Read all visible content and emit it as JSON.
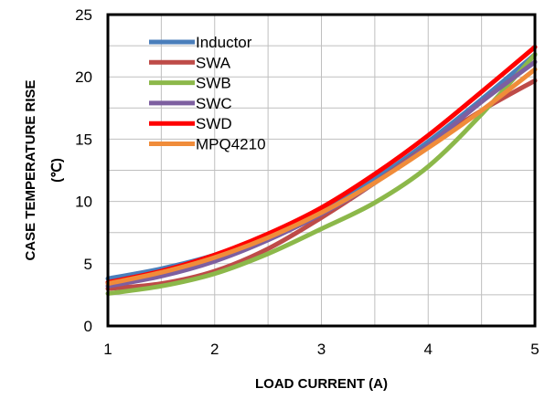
{
  "chart_data": {
    "type": "line",
    "xlabel": "LOAD CURRENT  (A)",
    "ylabel_line1": "CASE  TEMPERATURE  RISE",
    "ylabel_line2": "(℃)",
    "xlim": [
      1,
      5
    ],
    "ylim": [
      0,
      25
    ],
    "xticks": [
      1,
      2,
      3,
      4,
      5
    ],
    "yticks": [
      0,
      5,
      10,
      15,
      20,
      25
    ],
    "grid": true,
    "legend_position": "top-left",
    "series": [
      {
        "name": "Inductor",
        "color": "#4a7ebb",
        "x": [
          1,
          1.5,
          2,
          2.5,
          3,
          3.5,
          4,
          4.5,
          5
        ],
        "y": [
          3.8,
          4.6,
          5.7,
          7.3,
          9.3,
          11.8,
          14.8,
          18.2,
          21.8
        ]
      },
      {
        "name": "SWA",
        "color": "#be4b48",
        "x": [
          1,
          1.5,
          2,
          2.5,
          3,
          3.5,
          4,
          4.5,
          5
        ],
        "y": [
          3.0,
          3.4,
          4.4,
          6.2,
          8.7,
          11.5,
          14.5,
          17.3,
          19.7
        ]
      },
      {
        "name": "SWB",
        "color": "#8cb84a",
        "x": [
          1,
          1.5,
          2,
          2.5,
          3,
          3.5,
          4,
          4.5,
          5
        ],
        "y": [
          2.6,
          3.2,
          4.2,
          5.8,
          7.8,
          9.9,
          12.8,
          17.0,
          21.8
        ]
      },
      {
        "name": "SWC",
        "color": "#7d5fa0",
        "x": [
          1,
          1.5,
          2,
          2.5,
          3,
          3.5,
          4,
          4.5,
          5
        ],
        "y": [
          3.2,
          4.0,
          5.2,
          6.9,
          9.0,
          11.5,
          14.5,
          18.0,
          21.2
        ]
      },
      {
        "name": "SWD",
        "color": "#ff0000",
        "x": [
          1,
          1.5,
          2,
          2.5,
          3,
          3.5,
          4,
          4.5,
          5
        ],
        "y": [
          3.5,
          4.4,
          5.7,
          7.4,
          9.5,
          12.2,
          15.3,
          18.8,
          22.4
        ]
      },
      {
        "name": "MPQ4210",
        "color": "#f08c3a",
        "x": [
          1,
          1.5,
          2,
          2.5,
          3,
          3.5,
          4,
          4.5,
          5
        ],
        "y": [
          3.4,
          4.3,
          5.5,
          7.1,
          9.1,
          11.5,
          14.3,
          17.3,
          20.6
        ]
      }
    ]
  }
}
